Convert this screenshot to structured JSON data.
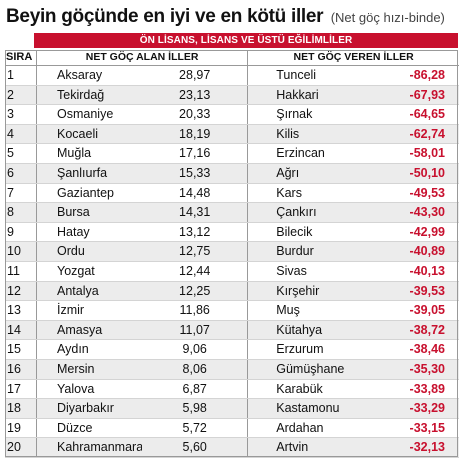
{
  "title": {
    "main": "Beyin göçünde en iyi ve en kötü iller",
    "sub": "(Net göç hızı-binde)"
  },
  "banner": "ÖN LİSANS, LİSANS VE ÜSTÜ EĞİLİMLİLER",
  "headers": {
    "rank": "SIRA",
    "gain": "NET GÖÇ ALAN İLLER",
    "loss": "NET GÖÇ VEREN İLLER"
  },
  "rows": [
    {
      "rank": "1",
      "city1": "Aksaray",
      "val1": "28,97",
      "city2": "Tunceli",
      "val2": "-86,28"
    },
    {
      "rank": "2",
      "city1": "Tekirdağ",
      "val1": "23,13",
      "city2": "Hakkari",
      "val2": "-67,93"
    },
    {
      "rank": "3",
      "city1": "Osmaniye",
      "val1": "20,33",
      "city2": "Şırnak",
      "val2": "-64,65"
    },
    {
      "rank": "4",
      "city1": "Kocaeli",
      "val1": "18,19",
      "city2": "Kilis",
      "val2": "-62,74"
    },
    {
      "rank": "5",
      "city1": "Muğla",
      "val1": "17,16",
      "city2": "Erzincan",
      "val2": "-58,01"
    },
    {
      "rank": "6",
      "city1": "Şanlıurfa",
      "val1": "15,33",
      "city2": "Ağrı",
      "val2": "-50,10"
    },
    {
      "rank": "7",
      "city1": "Gaziantep",
      "val1": "14,48",
      "city2": "Kars",
      "val2": "-49,53"
    },
    {
      "rank": "8",
      "city1": "Bursa",
      "val1": "14,31",
      "city2": "Çankırı",
      "val2": "-43,30"
    },
    {
      "rank": "9",
      "city1": "Hatay",
      "val1": "13,12",
      "city2": "Bilecik",
      "val2": "-42,99"
    },
    {
      "rank": "10",
      "city1": "Ordu",
      "val1": "12,75",
      "city2": "Burdur",
      "val2": "-40,89"
    },
    {
      "rank": "11",
      "city1": "Yozgat",
      "val1": "12,44",
      "city2": "Sivas",
      "val2": "-40,13"
    },
    {
      "rank": "12",
      "city1": "Antalya",
      "val1": "12,25",
      "city2": "Kırşehir",
      "val2": "-39,53"
    },
    {
      "rank": "13",
      "city1": "İzmir",
      "val1": "11,86",
      "city2": "Muş",
      "val2": "-39,05"
    },
    {
      "rank": "14",
      "city1": "Amasya",
      "val1": "11,07",
      "city2": "Kütahya",
      "val2": "-38,72"
    },
    {
      "rank": "15",
      "city1": "Aydın",
      "val1": "9,06",
      "city2": "Erzurum",
      "val2": "-38,46"
    },
    {
      "rank": "16",
      "city1": "Mersin",
      "val1": "8,06",
      "city2": "Gümüşhane",
      "val2": "-35,30"
    },
    {
      "rank": "17",
      "city1": "Yalova",
      "val1": "6,87",
      "city2": "Karabük",
      "val2": "-33,89"
    },
    {
      "rank": "18",
      "city1": "Diyarbakır",
      "val1": "5,98",
      "city2": "Kastamonu",
      "val2": "-33,29"
    },
    {
      "rank": "19",
      "city1": "Düzce",
      "val1": "5,72",
      "city2": "Ardahan",
      "val2": "-33,15"
    },
    {
      "rank": "20",
      "city1": "Kahramanmaraş",
      "val1": "5,60",
      "city2": "Artvin",
      "val2": "-32,13"
    }
  ],
  "colors": {
    "accent": "#c8102e",
    "stripe": "#ececec"
  }
}
